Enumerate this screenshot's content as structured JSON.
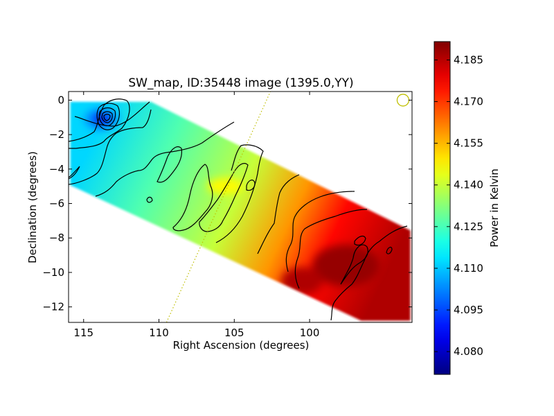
{
  "chart_data": {
    "type": "heatmap",
    "title": "SW_map, ID:35448 image (1395.0,YY)",
    "xlabel": "Right Ascension (degrees)",
    "ylabel": "Declination (degrees)",
    "xlim": [
      116,
      93.2
    ],
    "ylim": [
      -12.9,
      0.5
    ],
    "xticks": [
      115,
      110,
      105,
      100
    ],
    "xtick_labels": [
      "115",
      "110",
      "105",
      "100"
    ],
    "yticks": [
      0,
      -2,
      -4,
      -6,
      -8,
      -10,
      -12
    ],
    "ytick_labels": [
      "0",
      "−2",
      "−4",
      "−6",
      "−8",
      "−10",
      "−12"
    ],
    "colorbar": {
      "label": "Power in Kelvin",
      "colormap": "jet",
      "range": [
        4.0718,
        4.1916
      ],
      "ticks": [
        4.08,
        4.095,
        4.11,
        4.125,
        4.14,
        4.155,
        4.17,
        4.185
      ],
      "tick_labels": [
        "4.080",
        "4.095",
        "4.110",
        "4.125",
        "4.140",
        "4.155",
        "4.170",
        "4.185"
      ]
    },
    "field": {
      "corners": [
        [
          116.0,
          0.0
        ],
        [
          110.5,
          0.0
        ],
        [
          93.2,
          -7.5
        ],
        [
          93.2,
          -12.9
        ],
        [
          96.6,
          -12.9
        ],
        [
          116.0,
          -5.0
        ]
      ],
      "gradient_axis": "perpendicular to strip",
      "min_blob": {
        "ra": 113.8,
        "dec": -1.1,
        "value": 4.083
      },
      "low_values_upper_left": 4.112,
      "mid_values": 4.14,
      "high_values_lower_right": 4.186
    },
    "contour_lines": 17,
    "overlays": {
      "dotted_line": {
        "color": "#bfbf00",
        "from": [
          109.5,
          -12.9
        ],
        "to": [
          102.6,
          0.5
        ]
      },
      "circle": {
        "color": "#bfbf00",
        "ra": 93.8,
        "dec": 0.0
      }
    }
  }
}
